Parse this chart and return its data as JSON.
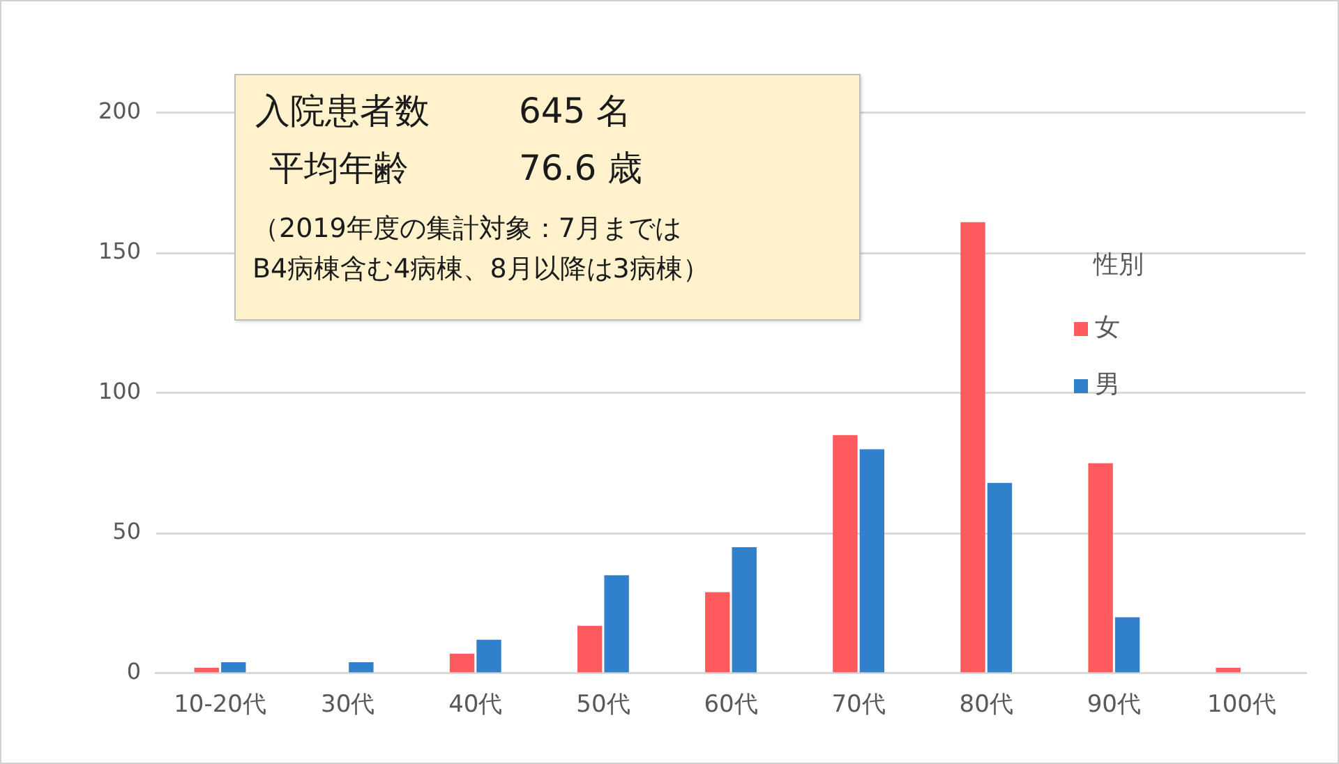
{
  "chart_data": {
    "type": "bar",
    "categories": [
      "10-20代",
      "30代",
      "40代",
      "50代",
      "60代",
      "70代",
      "80代",
      "90代",
      "100代"
    ],
    "series": [
      {
        "name": "女",
        "color": "#ff5a5e",
        "values": [
          2,
          0,
          7,
          17,
          29,
          85,
          161,
          75,
          2
        ]
      },
      {
        "name": "男",
        "color": "#3080cc",
        "values": [
          4,
          4,
          12,
          35,
          45,
          80,
          68,
          20,
          0
        ]
      }
    ],
    "ylim": [
      0,
      200
    ],
    "yticks": [
      0,
      50,
      100,
      150,
      200
    ],
    "grid": "y",
    "legend": "right",
    "legend_title": "性別",
    "annotations": [
      "入院患者数",
      "645 名",
      "平均年齢",
      "76.6 歳",
      "（2019年度の集計対象：7月までは\nB4病棟含む4病棟、8月以降は3病棟）"
    ]
  }
}
